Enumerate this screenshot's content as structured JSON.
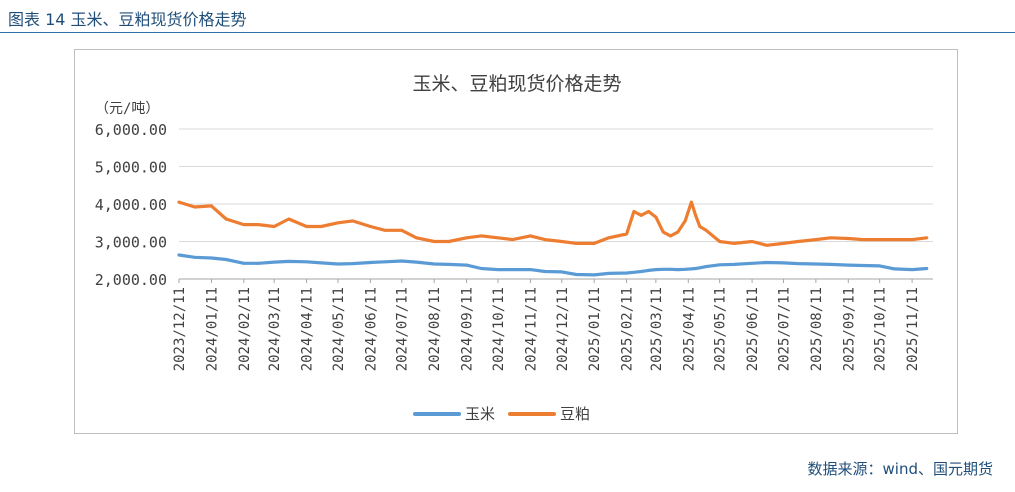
{
  "figure_title": "图表 14 玉米、豆粕现货价格走势",
  "source_note": "数据来源：wind、国元期货",
  "chart_data": {
    "type": "line",
    "title": "玉米、豆粕现货价格走势",
    "y_unit": "（元/吨）",
    "ylim": [
      2000,
      6000
    ],
    "y_ticks": [
      2000,
      3000,
      4000,
      5000,
      6000
    ],
    "y_tick_labels": [
      "2,000.00",
      "3,000.00",
      "4,000.00",
      "5,000.00",
      "6,000.00"
    ],
    "x_tick_labels": [
      "2023/12/11",
      "2024/01/11",
      "2024/02/11",
      "2024/03/11",
      "2024/04/11",
      "2024/05/11",
      "2024/06/11",
      "2024/07/11",
      "2024/08/11",
      "2024/09/11",
      "2024/10/11",
      "2024/11/11",
      "2024/12/11",
      "2025/01/11",
      "2025/02/11",
      "2025/03/11",
      "2025/04/11",
      "2025/05/11",
      "2025/06/11",
      "2025/07/11",
      "2025/08/11",
      "2025/09/11",
      "2025/10/11",
      "2025/11/11"
    ],
    "x": [
      "2023-12-11",
      "2023-12-26",
      "2024-01-11",
      "2024-01-25",
      "2024-02-11",
      "2024-02-25",
      "2024-03-11",
      "2024-03-25",
      "2024-04-11",
      "2024-04-25",
      "2024-05-11",
      "2024-05-25",
      "2024-06-11",
      "2024-06-25",
      "2024-07-11",
      "2024-07-25",
      "2024-08-11",
      "2024-08-25",
      "2024-09-11",
      "2024-09-25",
      "2024-10-11",
      "2024-10-25",
      "2024-11-11",
      "2024-11-25",
      "2024-12-11",
      "2024-12-25",
      "2025-01-11",
      "2025-01-25",
      "2025-02-11",
      "2025-02-18",
      "2025-02-25",
      "2025-03-04",
      "2025-03-11",
      "2025-03-18",
      "2025-03-25",
      "2025-04-01",
      "2025-04-08",
      "2025-04-14",
      "2025-04-18",
      "2025-04-22",
      "2025-04-28",
      "2025-05-11",
      "2025-05-25",
      "2025-06-11",
      "2025-06-25",
      "2025-07-11",
      "2025-07-25",
      "2025-08-11",
      "2025-08-25",
      "2025-09-11",
      "2025-09-25",
      "2025-10-11",
      "2025-10-25",
      "2025-11-11",
      "2025-11-25"
    ],
    "series": [
      {
        "name": "玉米",
        "color": "#5b9bd5",
        "values": [
          2640,
          2580,
          2560,
          2520,
          2420,
          2420,
          2450,
          2470,
          2460,
          2430,
          2400,
          2410,
          2440,
          2460,
          2480,
          2450,
          2400,
          2390,
          2370,
          2280,
          2250,
          2250,
          2250,
          2200,
          2190,
          2120,
          2110,
          2150,
          2160,
          2180,
          2200,
          2230,
          2250,
          2260,
          2260,
          2250,
          2260,
          2270,
          2280,
          2300,
          2330,
          2380,
          2390,
          2420,
          2440,
          2430,
          2410,
          2400,
          2390,
          2370,
          2360,
          2350,
          2270,
          2250,
          2280
        ]
      },
      {
        "name": "豆粕",
        "color": "#ed7d31",
        "values": [
          4050,
          3920,
          3950,
          3600,
          3450,
          3450,
          3400,
          3600,
          3400,
          3400,
          3500,
          3550,
          3400,
          3300,
          3300,
          3100,
          3000,
          3000,
          3100,
          3150,
          3100,
          3050,
          3150,
          3050,
          3000,
          2950,
          2950,
          3100,
          3200,
          3800,
          3700,
          3800,
          3650,
          3250,
          3150,
          3250,
          3550,
          4050,
          3700,
          3400,
          3300,
          3000,
          2950,
          3000,
          2900,
          2950,
          3000,
          3050,
          3100,
          3080,
          3050,
          3050,
          3050,
          3050,
          3100
        ]
      }
    ],
    "legend_position": "bottom-center",
    "grid": true
  }
}
